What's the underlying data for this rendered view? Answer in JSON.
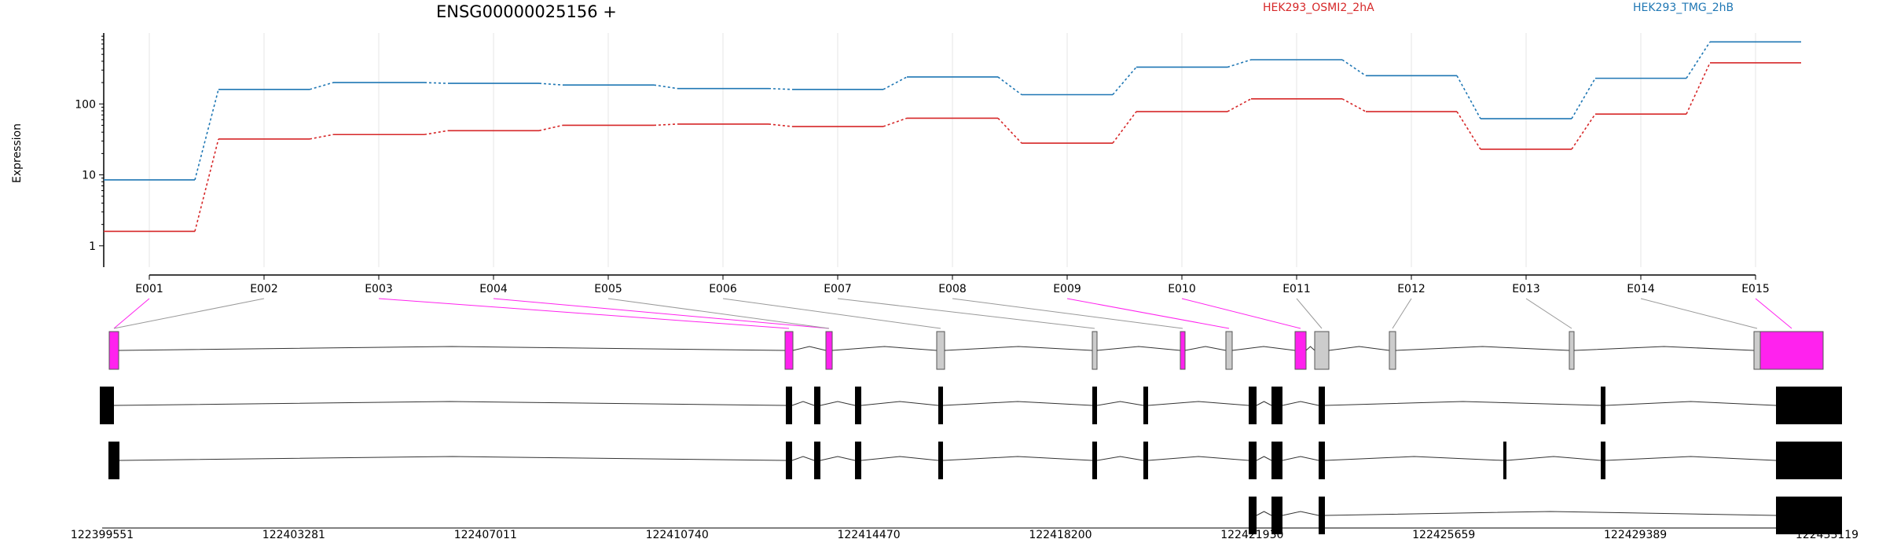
{
  "chart_data": {
    "type": "line",
    "title": "ENSG00000025156 +",
    "ylabel": "Expression",
    "y_scale": "log",
    "y_ticks": [
      "1",
      "10",
      "100"
    ],
    "ylim": [
      0.5,
      1000
    ],
    "grid": "vertical, at exon centers",
    "legend_placement": "top-right",
    "exon_labels": [
      "E001",
      "E002",
      "E003",
      "E004",
      "E005",
      "E006",
      "E007",
      "E008",
      "E009",
      "E010",
      "E011",
      "E012",
      "E013",
      "E014",
      "E015"
    ],
    "series": [
      {
        "name": "HEK293_OSMI2_2hA",
        "color": "#d62728",
        "values": [
          1.6,
          32,
          37,
          42,
          50,
          52,
          48,
          63,
          28,
          78,
          118,
          78,
          23,
          72,
          380
        ]
      },
      {
        "name": "HEK293_TMG_2hB",
        "color": "#1f77b4",
        "values": [
          8.5,
          160,
          200,
          195,
          185,
          165,
          160,
          240,
          135,
          330,
          420,
          250,
          62,
          230,
          750
        ]
      }
    ],
    "exon_highlight_color": "#ff22ee",
    "differential_exons": [
      "E001",
      "E003",
      "E004",
      "E009",
      "E010",
      "E015"
    ],
    "genomic_coordinates": [
      "122399551",
      "122403281",
      "122407011",
      "122410740",
      "122414470",
      "122418200",
      "122421930",
      "122425659",
      "122429389",
      "122433119"
    ]
  }
}
